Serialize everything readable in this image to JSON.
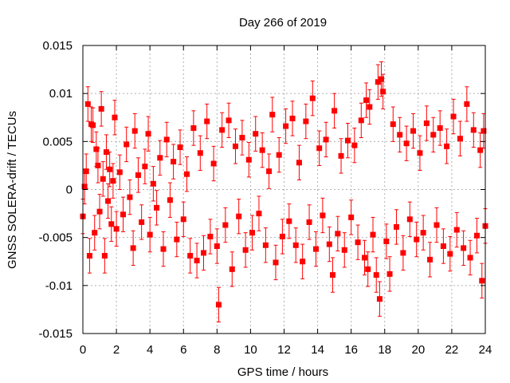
{
  "chart_data": {
    "type": "scatter",
    "title": "Day 266 of 2019",
    "xlabel": "GPS time / hours",
    "ylabel": "GNSS SOLERA-drift / TECUs",
    "xlim": [
      0,
      24
    ],
    "ylim": [
      -0.015,
      0.015
    ],
    "x_ticks": [
      "0",
      "2",
      "4",
      "6",
      "8",
      "10",
      "12",
      "14",
      "16",
      "18",
      "20",
      "22",
      "24"
    ],
    "y_ticks": [
      "-0.015",
      "-0.01",
      "-0.005",
      "0",
      "0.005",
      "0.01",
      "0.015"
    ],
    "grid": true,
    "color": "#ff0000",
    "marker": "square",
    "error_bars": true,
    "typical_error": 0.0018,
    "series": [
      {
        "points": [
          [
            0.0,
            -0.0028
          ],
          [
            0.1,
            0.0003
          ],
          [
            0.2,
            0.0019
          ],
          [
            0.3,
            0.0089
          ],
          [
            0.4,
            -0.0069
          ],
          [
            0.5,
            0.0068
          ],
          [
            0.6,
            0.0067
          ],
          [
            0.7,
            -0.0045
          ],
          [
            0.8,
            0.0042
          ],
          [
            0.9,
            0.0025
          ],
          [
            1.0,
            -0.0023
          ],
          [
            1.1,
            0.0084
          ],
          [
            1.2,
            0.0011
          ],
          [
            1.3,
            -0.0069
          ],
          [
            1.4,
            0.0039
          ],
          [
            1.5,
            -0.0012
          ],
          [
            1.6,
            0.0021
          ],
          [
            1.7,
            -0.0036
          ],
          [
            1.8,
            0.0009
          ],
          [
            1.9,
            0.0075
          ],
          [
            2.0,
            -0.0041
          ],
          [
            2.2,
            0.0018
          ],
          [
            2.4,
            -0.0026
          ],
          [
            2.6,
            0.0047
          ],
          [
            2.8,
            -0.0008
          ],
          [
            3.0,
            -0.0061
          ],
          [
            3.1,
            0.0061
          ],
          [
            3.3,
            0.0015
          ],
          [
            3.5,
            -0.0034
          ],
          [
            3.7,
            0.0024
          ],
          [
            3.9,
            0.0058
          ],
          [
            4.0,
            -0.0047
          ],
          [
            4.2,
            0.0006
          ],
          [
            4.4,
            -0.0019
          ],
          [
            4.6,
            0.0033
          ],
          [
            4.8,
            -0.0062
          ],
          [
            5.0,
            0.0052
          ],
          [
            5.2,
            -0.0011
          ],
          [
            5.4,
            0.0029
          ],
          [
            5.6,
            -0.0052
          ],
          [
            5.8,
            0.0044
          ],
          [
            6.0,
            -0.0031
          ],
          [
            6.2,
            0.0016
          ],
          [
            6.4,
            -0.0069
          ],
          [
            6.6,
            0.0064
          ],
          [
            6.8,
            -0.0074
          ],
          [
            7.0,
            0.0038
          ],
          [
            7.2,
            -0.0066
          ],
          [
            7.4,
            0.0071
          ],
          [
            7.6,
            -0.0049
          ],
          [
            7.8,
            0.0027
          ],
          [
            8.0,
            -0.0059
          ],
          [
            8.1,
            -0.012
          ],
          [
            8.3,
            0.0062
          ],
          [
            8.5,
            -0.0037
          ],
          [
            8.7,
            0.0072
          ],
          [
            8.9,
            -0.0083
          ],
          [
            9.1,
            0.0045
          ],
          [
            9.3,
            -0.0028
          ],
          [
            9.5,
            0.0054
          ],
          [
            9.7,
            -0.0063
          ],
          [
            9.9,
            0.0031
          ],
          [
            10.1,
            -0.0045
          ],
          [
            10.3,
            0.0058
          ],
          [
            10.5,
            -0.0025
          ],
          [
            10.7,
            0.0041
          ],
          [
            10.9,
            -0.0058
          ],
          [
            11.1,
            0.0019
          ],
          [
            11.3,
            0.0078
          ],
          [
            11.5,
            -0.0076
          ],
          [
            11.7,
            0.0036
          ],
          [
            11.9,
            -0.0049
          ],
          [
            12.1,
            0.0066
          ],
          [
            12.3,
            -0.0033
          ],
          [
            12.5,
            0.0074
          ],
          [
            12.7,
            -0.0058
          ],
          [
            12.9,
            0.0028
          ],
          [
            13.1,
            -0.0075
          ],
          [
            13.3,
            0.0071
          ],
          [
            13.5,
            -0.0034
          ],
          [
            13.7,
            0.0095
          ],
          [
            13.9,
            -0.0062
          ],
          [
            14.1,
            0.0043
          ],
          [
            14.3,
            -0.0027
          ],
          [
            14.5,
            0.0052
          ],
          [
            14.7,
            -0.0057
          ],
          [
            14.9,
            -0.0089
          ],
          [
            15.0,
            0.0082
          ],
          [
            15.2,
            -0.0046
          ],
          [
            15.4,
            0.0035
          ],
          [
            15.6,
            -0.0063
          ],
          [
            15.8,
            0.0051
          ],
          [
            16.0,
            -0.0029
          ],
          [
            16.2,
            0.0046
          ],
          [
            16.4,
            -0.0055
          ],
          [
            16.6,
            0.0072
          ],
          [
            16.8,
            -0.0071
          ],
          [
            16.9,
            0.0093
          ],
          [
            17.0,
            -0.0083
          ],
          [
            17.1,
            0.0086
          ],
          [
            17.3,
            -0.0047
          ],
          [
            17.5,
            -0.0089
          ],
          [
            17.6,
            0.0112
          ],
          [
            17.7,
            -0.0114
          ],
          [
            17.8,
            0.0115
          ],
          [
            17.9,
            0.0102
          ],
          [
            18.1,
            -0.0054
          ],
          [
            18.3,
            -0.0088
          ],
          [
            18.5,
            0.0068
          ],
          [
            18.7,
            -0.0039
          ],
          [
            18.9,
            0.0057
          ],
          [
            19.1,
            -0.0066
          ],
          [
            19.3,
            0.0048
          ],
          [
            19.5,
            -0.0031
          ],
          [
            19.7,
            0.0061
          ],
          [
            19.9,
            -0.0052
          ],
          [
            20.1,
            0.0038
          ],
          [
            20.3,
            -0.0045
          ],
          [
            20.5,
            0.0069
          ],
          [
            20.7,
            -0.0073
          ],
          [
            20.9,
            0.0057
          ],
          [
            21.1,
            -0.0037
          ],
          [
            21.3,
            0.0064
          ],
          [
            21.5,
            -0.0059
          ],
          [
            21.7,
            0.0045
          ],
          [
            21.9,
            -0.0067
          ],
          [
            22.1,
            0.0076
          ],
          [
            22.3,
            -0.0042
          ],
          [
            22.5,
            0.0053
          ],
          [
            22.7,
            -0.0061
          ],
          [
            22.9,
            0.0089
          ],
          [
            23.1,
            -0.0071
          ],
          [
            23.3,
            0.0062
          ],
          [
            23.5,
            -0.0048
          ],
          [
            23.7,
            0.0041
          ],
          [
            23.8,
            -0.0095
          ],
          [
            23.9,
            0.0061
          ],
          [
            24.0,
            -0.0038
          ]
        ]
      }
    ]
  }
}
